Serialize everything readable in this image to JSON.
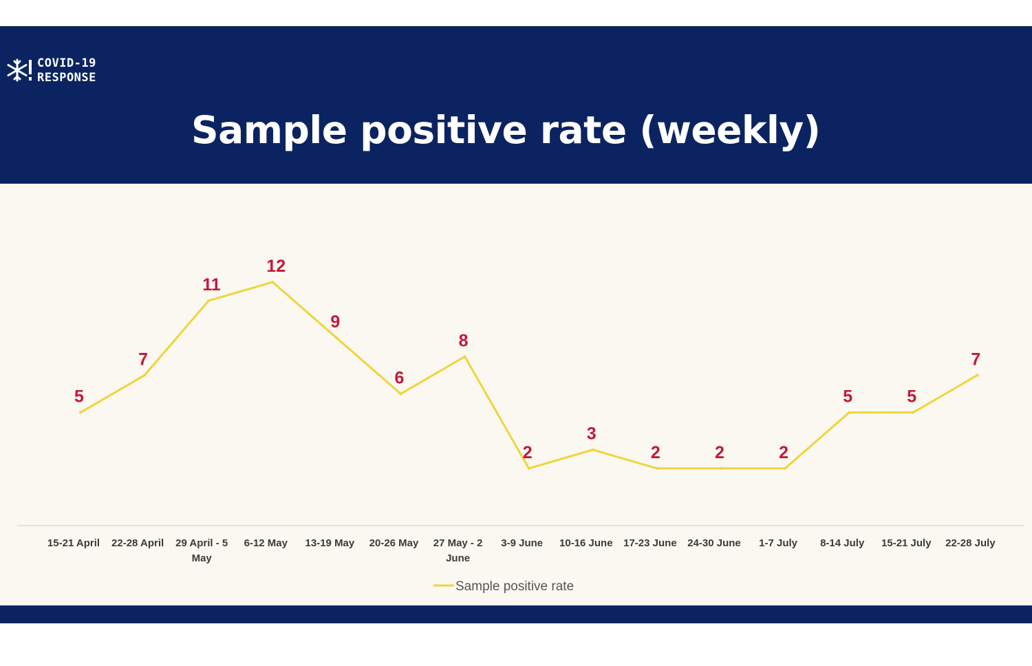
{
  "header": {
    "logo_line1": "COVID-19",
    "logo_line2": "RESPONSE",
    "title": "Sample positive rate (weekly)"
  },
  "colors": {
    "banner": "#0b2461",
    "line": "#f0d43a",
    "data_label": "#c4173a",
    "background": "#faf8f1"
  },
  "chart_data": {
    "type": "line",
    "title": "Sample positive rate (weekly)",
    "categories": [
      [
        "15-21 April"
      ],
      [
        "22-28 April"
      ],
      [
        "29 April - 5",
        "May"
      ],
      [
        "6-12 May"
      ],
      [
        "13-19 May"
      ],
      [
        "20-26 May"
      ],
      [
        "27 May - 2",
        "June"
      ],
      [
        "3-9 June"
      ],
      [
        "10-16 June"
      ],
      [
        "17-23 June"
      ],
      [
        "24-30 June"
      ],
      [
        "1-7 July"
      ],
      [
        "8-14 July"
      ],
      [
        "15-21 July"
      ],
      [
        "22-28 July"
      ]
    ],
    "series": [
      {
        "name": "Sample positive rate",
        "values": [
          5,
          7,
          11,
          12,
          9,
          6,
          8,
          2,
          3,
          2,
          2,
          2,
          5,
          5,
          7
        ]
      }
    ],
    "data_labels": true,
    "legend": "bottom-center",
    "grid": false
  }
}
